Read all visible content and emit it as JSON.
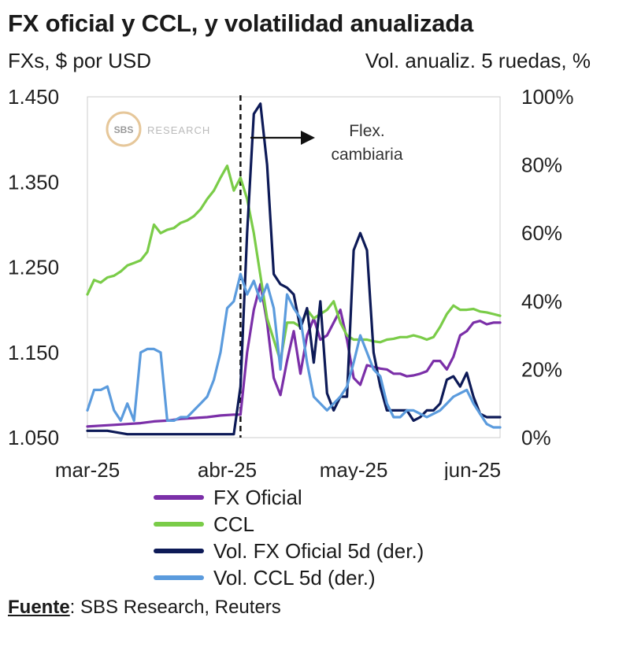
{
  "header": {
    "title": "FX oficial y CCL, y volatilidad anualizada",
    "left_unit": "FXs, $ por USD",
    "right_unit": "Vol. anualiz. 5 ruedas, %"
  },
  "watermark": {
    "logo_text": "SBS",
    "brand_text": "RESEARCH"
  },
  "source": {
    "label": "Fuente",
    "text": ": SBS Research, Reuters"
  },
  "chart_data": {
    "type": "line",
    "title": "FX oficial y CCL, y volatilidad anualizada",
    "x_tick_labels": [
      "mar-25",
      "abr-25",
      "may-25",
      "jun-25"
    ],
    "x_tick_positions": [
      0,
      21,
      40,
      58
    ],
    "x_range": [
      0,
      62
    ],
    "y_left": {
      "label": "FXs, $ por USD",
      "range": [
        1050,
        1450
      ],
      "ticks": [
        1050,
        1150,
        1250,
        1350,
        1450
      ],
      "tick_labels": [
        "1.050",
        "1.150",
        "1.250",
        "1.350",
        "1.450"
      ]
    },
    "y_right": {
      "label": "Vol. anualiz. 5 ruedas, %",
      "range": [
        0,
        100
      ],
      "ticks": [
        0,
        20,
        40,
        60,
        80,
        100
      ],
      "tick_labels": [
        "0%",
        "20%",
        "40%",
        "60%",
        "80%",
        "100%"
      ]
    },
    "annotation": {
      "line1": "Flex.",
      "line2": "cambiaria",
      "x": 23
    },
    "grid": false,
    "legend_position": "bottom",
    "series": [
      {
        "name": "FX Oficial",
        "axis": "left",
        "color": "#7b2fa8",
        "x": [
          0,
          2,
          4,
          6,
          8,
          10,
          12,
          14,
          16,
          18,
          20,
          22,
          23,
          24,
          25,
          26,
          27,
          28,
          29,
          30,
          31,
          32,
          33,
          34,
          35,
          36,
          37,
          38,
          39,
          40,
          41,
          42,
          43,
          44,
          45,
          46,
          47,
          48,
          49,
          50,
          51,
          52,
          53,
          54,
          55,
          56,
          57,
          58,
          59,
          60,
          61,
          62
        ],
        "y": [
          1063,
          1064,
          1065,
          1066,
          1067,
          1069,
          1070,
          1072,
          1073,
          1074,
          1076,
          1077,
          1077,
          1150,
          1200,
          1230,
          1185,
          1120,
          1100,
          1140,
          1175,
          1125,
          1170,
          1190,
          1165,
          1170,
          1185,
          1200,
          1165,
          1120,
          1112,
          1135,
          1133,
          1131,
          1130,
          1125,
          1125,
          1122,
          1123,
          1125,
          1128,
          1140,
          1140,
          1130,
          1145,
          1170,
          1175,
          1185,
          1187,
          1183,
          1185,
          1185
        ]
      },
      {
        "name": "CCL",
        "axis": "left",
        "color": "#7acc48",
        "x": [
          0,
          1,
          2,
          3,
          4,
          5,
          6,
          7,
          8,
          9,
          10,
          11,
          12,
          13,
          14,
          15,
          16,
          17,
          18,
          19,
          20,
          21,
          22,
          23,
          24,
          25,
          26,
          27,
          28,
          29,
          30,
          31,
          32,
          33,
          34,
          35,
          36,
          37,
          38,
          39,
          40,
          41,
          42,
          43,
          44,
          45,
          46,
          47,
          48,
          49,
          50,
          51,
          52,
          53,
          54,
          55,
          56,
          57,
          58,
          59,
          60,
          61,
          62
        ],
        "y": [
          1218,
          1235,
          1232,
          1238,
          1240,
          1245,
          1252,
          1255,
          1258,
          1268,
          1300,
          1290,
          1294,
          1296,
          1302,
          1305,
          1310,
          1318,
          1330,
          1340,
          1355,
          1369,
          1340,
          1355,
          1330,
          1290,
          1240,
          1190,
          1165,
          1140,
          1185,
          1185,
          1180,
          1200,
          1190,
          1195,
          1200,
          1210,
          1185,
          1170,
          1165,
          1165,
          1165,
          1163,
          1162,
          1165,
          1166,
          1168,
          1168,
          1170,
          1168,
          1165,
          1168,
          1180,
          1195,
          1205,
          1200,
          1200,
          1201,
          1198,
          1197,
          1195,
          1193
        ]
      },
      {
        "name": "Vol. FX Oficial 5d (der.)",
        "axis": "right",
        "color": "#0d1a57",
        "x": [
          0,
          3,
          6,
          9,
          12,
          15,
          18,
          21,
          22,
          23,
          24,
          25,
          26,
          27,
          28,
          29,
          30,
          31,
          32,
          33,
          34,
          35,
          36,
          37,
          38,
          39,
          40,
          41,
          42,
          43,
          44,
          45,
          46,
          47,
          48,
          49,
          50,
          51,
          52,
          53,
          54,
          55,
          56,
          57,
          58,
          59,
          60,
          61,
          62
        ],
        "y": [
          2,
          2,
          1,
          1,
          1,
          1,
          1,
          1,
          1,
          15,
          60,
          95,
          98,
          80,
          48,
          45,
          44,
          42,
          32,
          38,
          22,
          40,
          13,
          8,
          12,
          12,
          55,
          60,
          55,
          25,
          15,
          8,
          8,
          8,
          8,
          5,
          6,
          8,
          8,
          10,
          17,
          18,
          15,
          19,
          12,
          7,
          6,
          6,
          6
        ]
      },
      {
        "name": "Vol. CCL 5d (der.)",
        "axis": "right",
        "color": "#5b9bdd",
        "x": [
          0,
          1,
          2,
          3,
          4,
          5,
          6,
          7,
          8,
          9,
          10,
          11,
          12,
          13,
          14,
          15,
          16,
          17,
          18,
          19,
          20,
          21,
          22,
          23,
          24,
          25,
          26,
          27,
          28,
          29,
          30,
          31,
          32,
          33,
          34,
          35,
          36,
          37,
          38,
          39,
          40,
          41,
          42,
          43,
          44,
          45,
          46,
          47,
          48,
          49,
          50,
          51,
          52,
          53,
          54,
          55,
          56,
          57,
          58,
          59,
          60,
          61,
          62
        ],
        "y": [
          8,
          14,
          14,
          15,
          8,
          5,
          10,
          5,
          25,
          26,
          26,
          25,
          5,
          5,
          6,
          6,
          8,
          10,
          12,
          17,
          25,
          38,
          40,
          48,
          42,
          46,
          40,
          45,
          38,
          20,
          42,
          38,
          35,
          22,
          12,
          10,
          8,
          10,
          12,
          15,
          22,
          30,
          25,
          20,
          18,
          10,
          6,
          6,
          8,
          8,
          7,
          6,
          7,
          8,
          10,
          12,
          13,
          14,
          10,
          7,
          4,
          3,
          3
        ]
      }
    ]
  }
}
